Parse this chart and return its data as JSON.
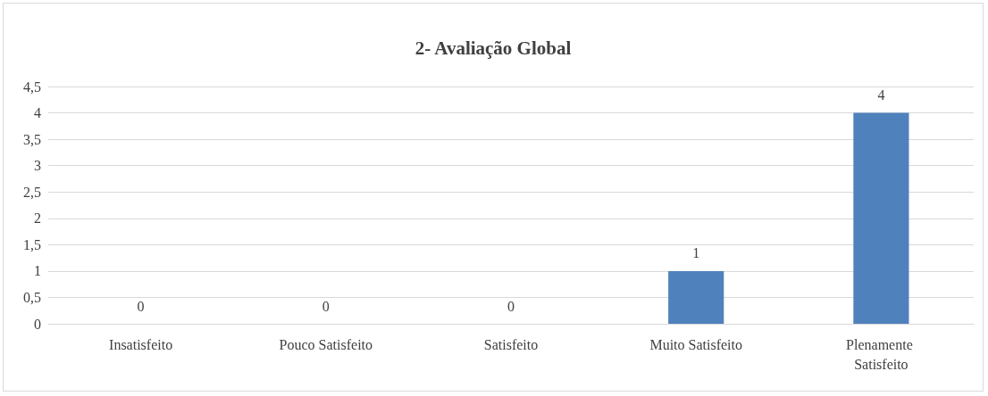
{
  "chart_data": {
    "type": "bar",
    "title": "2- Avaliação Global",
    "categories": [
      "Insatisfeito",
      "Pouco Satisfeito",
      "Satisfeito",
      "Muito Satisfeito",
      "Plenamente Satisfeito"
    ],
    "values": [
      0,
      0,
      0,
      1,
      4
    ],
    "color": "#4f81bd",
    "ylim": [
      0,
      4.5
    ],
    "yticks": [
      0,
      {
        "value": 0.5,
        "label": "0,5"
      },
      1,
      {
        "value": 1.5,
        "label": "1,5"
      },
      2,
      {
        "value": 2.5,
        "label": "2,5"
      },
      3,
      {
        "value": 3.5,
        "label": "3,5"
      },
      4,
      {
        "value": 4.5,
        "label": "4,5"
      }
    ],
    "grid": "y",
    "data_labels": true
  }
}
